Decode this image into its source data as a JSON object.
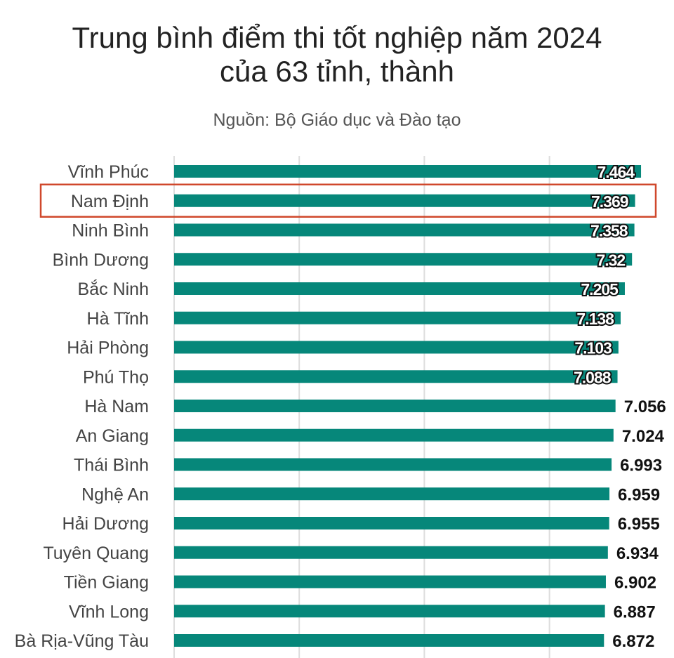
{
  "chart_data": {
    "type": "bar",
    "orientation": "horizontal",
    "title": "Trung bình điểm thi tốt nghiệp năm 2024 của 63 tỉnh, thành",
    "title_lines": [
      "Trung bình điểm thi tốt nghiệp năm 2024",
      "của 63 tỉnh, thành"
    ],
    "subtitle": "Nguồn: Bộ Giáo dục và Đào tạo",
    "xlabel": "",
    "ylabel": "",
    "xlim": [
      0,
      8
    ],
    "grid": true,
    "grid_values": [
      0,
      2,
      4,
      6
    ],
    "bar_color": "#06877a",
    "highlight_color": "#d0482c",
    "highlighted_category": "Nam Định",
    "categories": [
      "Vĩnh Phúc",
      "Nam Định",
      "Ninh Bình",
      "Bình Dương",
      "Bắc Ninh",
      "Hà Tĩnh",
      "Hải Phòng",
      "Phú Thọ",
      "Hà Nam",
      "An Giang",
      "Thái Bình",
      "Nghệ An",
      "Hải Dương",
      "Tuyên Quang",
      "Tiền Giang",
      "Vĩnh Long",
      "Bà Rịa-Vũng Tàu"
    ],
    "values": [
      7.464,
      7.369,
      7.358,
      7.32,
      7.205,
      7.138,
      7.103,
      7.088,
      7.056,
      7.024,
      6.993,
      6.959,
      6.955,
      6.934,
      6.902,
      6.887,
      6.872
    ],
    "value_labels": [
      "7.464",
      "7.369",
      "7.358",
      "7.32",
      "7.205",
      "7.138",
      "7.103",
      "7.088",
      "7.056",
      "7.024",
      "6.993",
      "6.959",
      "6.955",
      "6.934",
      "6.902",
      "6.887",
      "6.872"
    ]
  }
}
